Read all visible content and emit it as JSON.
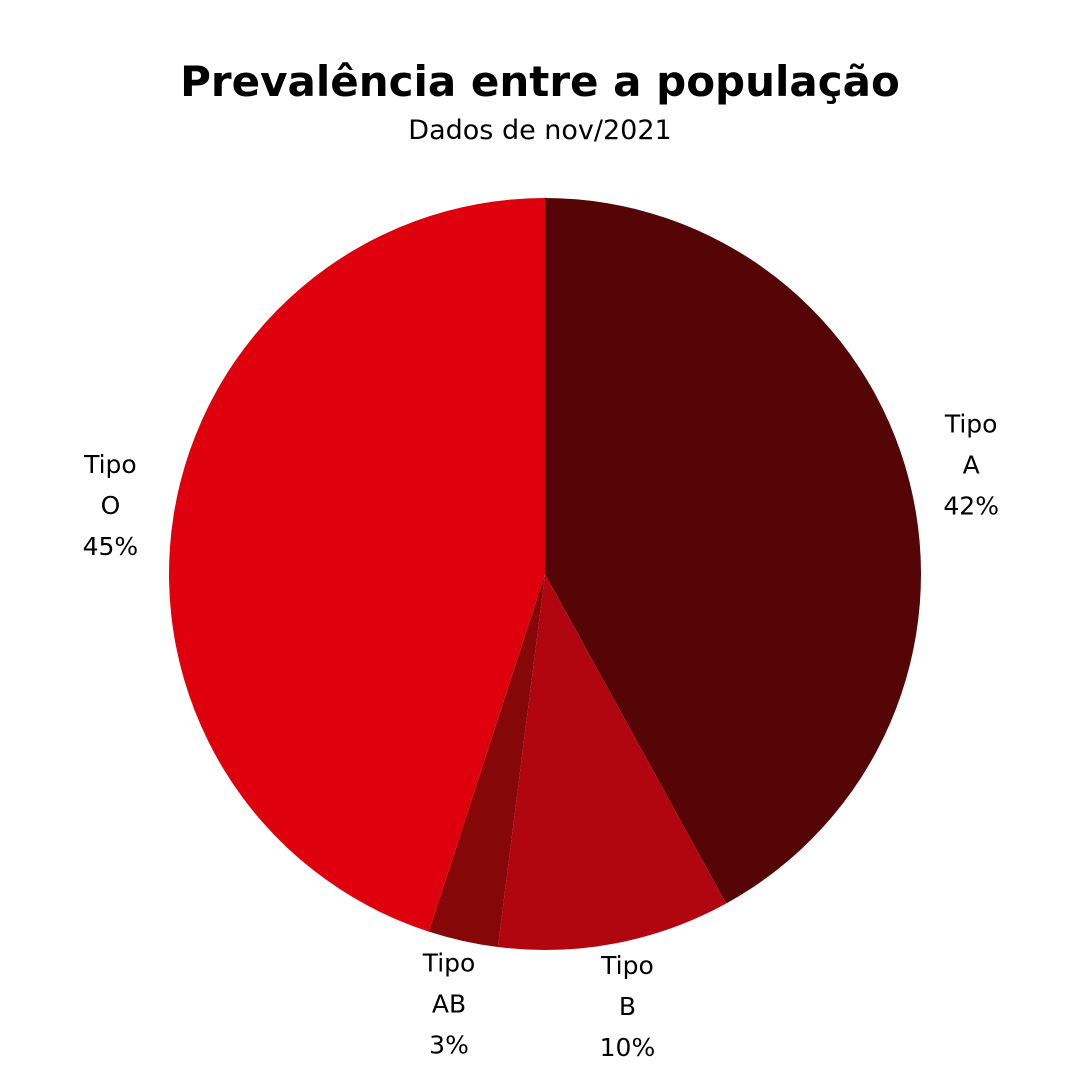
{
  "chart_data": {
    "type": "pie",
    "title": "Prevalência entre a população",
    "subtitle": "Dados de nov/2021",
    "start_angle_deg": 0,
    "direction": "clockwise",
    "slices": [
      {
        "label": [
          "Tipo",
          "A",
          "42%"
        ],
        "value": 42,
        "color": "#560506"
      },
      {
        "label": [
          "Tipo",
          "B",
          "10%"
        ],
        "value": 10,
        "color": "#b1050f"
      },
      {
        "label": [
          "Tipo",
          "AB",
          "3%"
        ],
        "value": 3,
        "color": "#850707"
      },
      {
        "label": [
          "Tipo",
          "O",
          "45%"
        ],
        "value": 45,
        "color": "#df000d"
      }
    ]
  }
}
